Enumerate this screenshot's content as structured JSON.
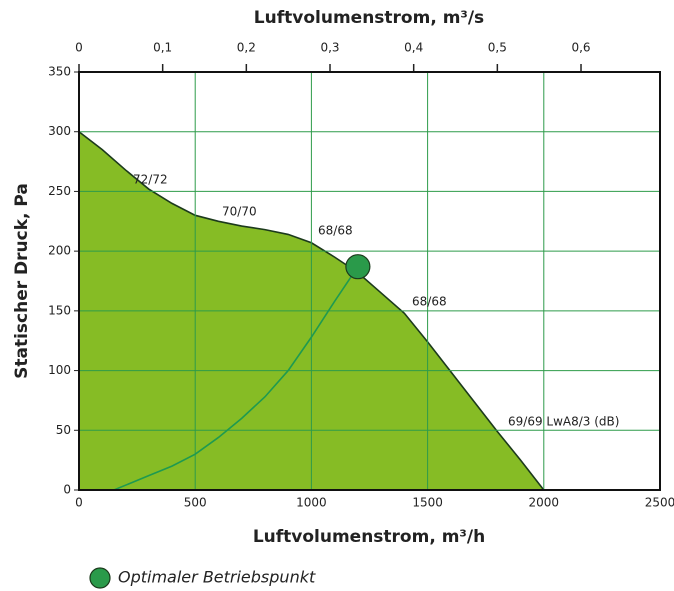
{
  "chart_data": {
    "type": "area",
    "title": "Luftvolumenstrom, m³/s",
    "xlabel": "Luftvolumenstrom, m³/h",
    "ylabel": "Statischer Druck, Pa",
    "xlim": [
      0,
      2500
    ],
    "xticks": [
      0,
      500,
      1000,
      1500,
      2000,
      2500
    ],
    "ylim": [
      0,
      350
    ],
    "yticks": [
      0,
      50,
      100,
      150,
      200,
      250,
      300,
      350
    ],
    "x2lim": [
      0,
      0.6944
    ],
    "x2ticks": [
      0,
      {
        "value": 0.1,
        "label": "0,1"
      },
      {
        "value": 0.2,
        "label": "0,2"
      },
      {
        "value": 0.3,
        "label": "0,3"
      },
      {
        "value": 0.4,
        "label": "0,4"
      },
      {
        "value": 0.5,
        "label": "0,5"
      },
      {
        "value": 0.6,
        "label": "0,6"
      }
    ],
    "grid": true,
    "series": [
      {
        "type": "area",
        "color": "#86bc25",
        "line_color": "#1c3a1c",
        "x": [
          0,
          100,
          200,
          300,
          400,
          500,
          600,
          700,
          800,
          900,
          1000,
          1100,
          1200,
          1300,
          1400,
          1500,
          1600,
          1700,
          1800,
          1900,
          2000
        ],
        "values": [
          300,
          285,
          268,
          252,
          240,
          230,
          225,
          221,
          218,
          214,
          207,
          195,
          182,
          165,
          148,
          124,
          99,
          74,
          49,
          25,
          0
        ]
      },
      {
        "type": "line",
        "color": "#1e9a50",
        "x": [
          150,
          300,
          400,
          500,
          600,
          700,
          800,
          900,
          1000,
          1100,
          1200
        ],
        "values": [
          0,
          12,
          20,
          30,
          44,
          60,
          78,
          100,
          128,
          158,
          187
        ]
      }
    ],
    "point": {
      "name": "Optimaler Betriebspunkt",
      "x": 1200,
      "y": 187,
      "color": "#2a9a4a"
    },
    "annotations": [
      "72/72",
      "70/70",
      "68/68",
      "68/68",
      "69/69 LwA8/3 (dB)"
    ]
  }
}
